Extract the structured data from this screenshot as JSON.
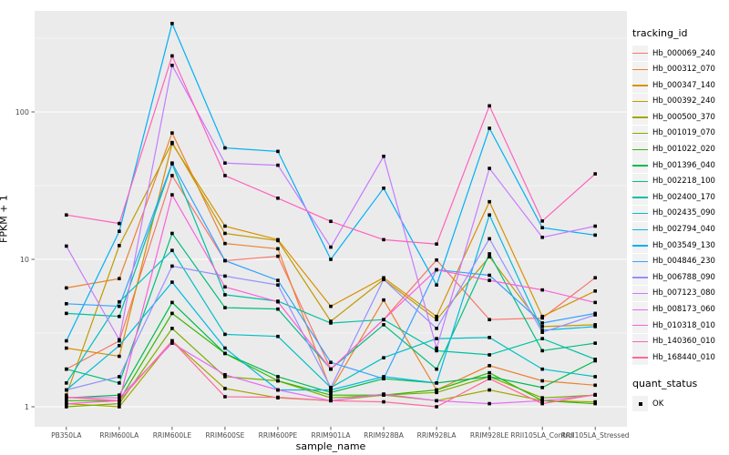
{
  "chart_data": {
    "type": "line",
    "title": "",
    "xlabel": "sample_name",
    "ylabel": "FPKM + 1",
    "yscale": "log10",
    "yticks": [
      1,
      10,
      100
    ],
    "ytick_labels": [
      "1",
      "10",
      "100"
    ],
    "minor_gridlines_at": [
      3.162,
      31.62,
      316.2
    ],
    "ylim": [
      0.75,
      500
    ],
    "grid": "on",
    "legend_position": "right",
    "categories": [
      "PB350LA",
      "RRIM600LA",
      "RRIM600LE",
      "RRIM600SE",
      "RRIM600PE",
      "RRIM901LA",
      "RRIM928BA",
      "RRIM928LA",
      "RRIM928LE",
      "RRII105LA_Control",
      "RRII105LA_Stressed"
    ],
    "series": [
      {
        "name": "Hb_000069_240",
        "color": "#F8766D",
        "values": [
          1.8,
          2.8,
          37,
          9.8,
          10.5,
          1.8,
          3.9,
          9.9,
          3.9,
          4.0,
          7.5
        ]
      },
      {
        "name": "Hb_000312_070",
        "color": "#EA8331",
        "values": [
          6.4,
          7.4,
          72,
          12.8,
          11.8,
          1.3,
          5.3,
          1.3,
          1.9,
          1.5,
          1.4
        ]
      },
      {
        "name": "Hb_000347_140",
        "color": "#D89000",
        "values": [
          2.5,
          2.2,
          61,
          16.8,
          13.6,
          4.8,
          7.5,
          4.1,
          24.6,
          4.1,
          6.1
        ]
      },
      {
        "name": "Hb_000392_240",
        "color": "#C09B00",
        "values": [
          1.2,
          12.4,
          62,
          15,
          13.4,
          3.8,
          7.3,
          3.9,
          10.4,
          3.5,
          3.6
        ]
      },
      {
        "name": "Hb_000500_370",
        "color": "#A3A500",
        "values": [
          1.05,
          1.0,
          2.8,
          1.33,
          1.15,
          1.1,
          1.2,
          1.1,
          1.3,
          1.1,
          1.08
        ]
      },
      {
        "name": "Hb_001019_070",
        "color": "#7CAE00",
        "values": [
          1.0,
          1.05,
          3.4,
          1.6,
          1.5,
          1.15,
          1.2,
          1.25,
          1.6,
          1.15,
          1.2
        ]
      },
      {
        "name": "Hb_001022_020",
        "color": "#39B600",
        "values": [
          1.1,
          1.1,
          4.3,
          2.3,
          1.5,
          1.2,
          1.2,
          1.3,
          1.7,
          1.1,
          1.05
        ]
      },
      {
        "name": "Hb_001396_040",
        "color": "#00BB4E",
        "values": [
          1.15,
          1.2,
          5.1,
          2.3,
          1.6,
          1.25,
          1.55,
          1.45,
          1.6,
          1.35,
          2.05
        ]
      },
      {
        "name": "Hb_002218_100",
        "color": "#00BF7D",
        "values": [
          1.8,
          1.45,
          15,
          4.7,
          4.6,
          1.8,
          3.6,
          1.8,
          10.9,
          2.4,
          2.7
        ]
      },
      {
        "name": "Hb_002400_170",
        "color": "#00C1A3",
        "values": [
          4.3,
          4.1,
          44.5,
          5.75,
          5.2,
          3.7,
          3.9,
          2.4,
          2.25,
          2.9,
          2.1
        ]
      },
      {
        "name": "Hb_002435_090",
        "color": "#00BFC4",
        "values": [
          1.45,
          5.15,
          11.5,
          3.1,
          3.0,
          1.35,
          2.15,
          2.9,
          2.95,
          1.8,
          1.6
        ]
      },
      {
        "name": "Hb_002794_040",
        "color": "#00BAE0",
        "values": [
          1.3,
          2.6,
          7.0,
          2.5,
          1.3,
          1.3,
          1.6,
          1.45,
          20,
          3.3,
          3.5
        ]
      },
      {
        "name": "Hb_003549_130",
        "color": "#00B0F6",
        "values": [
          2.8,
          15.5,
          398,
          57,
          54,
          10,
          30.4,
          6.7,
          77.5,
          16.4,
          14.6
        ]
      },
      {
        "name": "Hb_004846_230",
        "color": "#35A2FF",
        "values": [
          5.0,
          4.8,
          45,
          9.8,
          7.2,
          2.0,
          1.55,
          8.5,
          7.8,
          3.7,
          4.3
        ]
      },
      {
        "name": "Hb_006788_090",
        "color": "#9590FF",
        "values": [
          1.3,
          1.6,
          9.0,
          7.7,
          6.7,
          1.35,
          7.3,
          3.4,
          13.8,
          3.2,
          4.2
        ]
      },
      {
        "name": "Hb_007123_080",
        "color": "#C77CFF",
        "values": [
          12.3,
          2.85,
          207,
          45,
          43.5,
          12.1,
          50,
          2.5,
          41.4,
          14.1,
          16.8
        ]
      },
      {
        "name": "Hb_008173_060",
        "color": "#E76BF3",
        "values": [
          1.16,
          1.15,
          2.7,
          1.65,
          1.3,
          1.1,
          1.22,
          1.1,
          1.05,
          1.1,
          1.2
        ]
      },
      {
        "name": "Hb_010318_010",
        "color": "#FA62DB",
        "values": [
          1.05,
          1.1,
          27.4,
          6.5,
          5.15,
          1.8,
          3.9,
          8.5,
          7.2,
          6.2,
          5.1
        ]
      },
      {
        "name": "Hb_140360_010",
        "color": "#FF62BC",
        "values": [
          20,
          17.5,
          240,
          37,
          26,
          18.1,
          13.6,
          12.7,
          110,
          18.2,
          38
        ]
      },
      {
        "name": "Hb_168440_010",
        "color": "#FF6A98",
        "values": [
          1.16,
          1.1,
          2.8,
          1.17,
          1.16,
          1.1,
          1.08,
          1.0,
          1.55,
          1.05,
          1.21
        ]
      }
    ],
    "legend": {
      "color_title": "tracking_id",
      "shape_title": "quant_status",
      "shape_label": "OK",
      "marker_shape": "square",
      "marker_color": "#000000"
    },
    "style": {
      "panel_bg": "#EBEBEB",
      "grid_color": "#FFFFFF",
      "tick_color": "#333333",
      "tick_label_color": "#4D4D4D",
      "legend_key_bg": "#F2F2F2",
      "point_color": "#000000"
    }
  }
}
